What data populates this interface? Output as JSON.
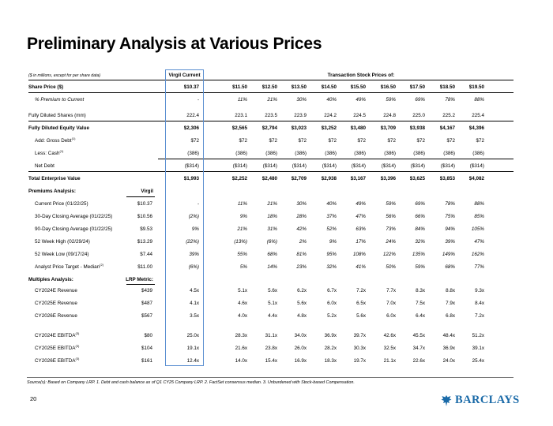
{
  "title": "Preliminary Analysis at Various Prices",
  "units_note": "($ in millions, except for per share data)",
  "header_virgil": "Virgil Current",
  "header_transaction": "Transaction Stock Prices of:",
  "top_rows": [
    {
      "label": "Share Price ($)",
      "style": "bold",
      "virgil": "$10.37",
      "values": [
        "$11.50",
        "$12.50",
        "$13.50",
        "$14.50",
        "$15.50",
        "$16.50",
        "$17.50",
        "$18.50",
        "$19.50"
      ]
    },
    {
      "label": "% Premium to Current",
      "style": "ital-sub",
      "virgil": "-",
      "values": [
        "11%",
        "21%",
        "30%",
        "40%",
        "49%",
        "59%",
        "69%",
        "78%",
        "88%"
      ]
    },
    {
      "label": "Fully Diluted Shares (mm)",
      "style": "",
      "virgil": "222.4",
      "values": [
        "223.1",
        "223.5",
        "223.9",
        "224.2",
        "224.5",
        "224.8",
        "225.0",
        "225.2",
        "225.4"
      ]
    },
    {
      "label": "Fully Diluted Equity Value",
      "style": "bold",
      "virgil": "$2,306",
      "values": [
        "$2,565",
        "$2,794",
        "$3,023",
        "$3,252",
        "$3,480",
        "$3,709",
        "$3,938",
        "$4,167",
        "$4,396"
      ]
    },
    {
      "label": "Add: Gross Debt",
      "sup": "(1)",
      "style": "sub",
      "virgil": "$72",
      "values": [
        "$72",
        "$72",
        "$72",
        "$72",
        "$72",
        "$72",
        "$72",
        "$72",
        "$72"
      ]
    },
    {
      "label": "Less: Cash",
      "sup": "(1)",
      "style": "sub",
      "virgil": "(386)",
      "values": [
        "(386)",
        "(386)",
        "(386)",
        "(386)",
        "(386)",
        "(386)",
        "(386)",
        "(386)",
        "(386)"
      ]
    },
    {
      "label": "Net Debt",
      "style": "sub",
      "virgil": "($314)",
      "values": [
        "($314)",
        "($314)",
        "($314)",
        "($314)",
        "($314)",
        "($314)",
        "($314)",
        "($314)",
        "($314)"
      ]
    },
    {
      "label": "Total Enterprise Value",
      "style": "bold",
      "virgil": "$1,993",
      "values": [
        "$2,252",
        "$2,480",
        "$2,709",
        "$2,938",
        "$3,167",
        "$3,396",
        "$3,625",
        "$3,853",
        "$4,082"
      ]
    }
  ],
  "premiums": {
    "heading": "Premiums Analysis:",
    "ref_header": "Virgil",
    "rows": [
      {
        "label": "Current Price (01/22/25)",
        "ref": "$10.37",
        "virgil": "-",
        "values": [
          "11%",
          "21%",
          "30%",
          "40%",
          "49%",
          "59%",
          "69%",
          "78%",
          "88%"
        ]
      },
      {
        "label": "30-Day Closing Average (01/22/25)",
        "ref": "$10.56",
        "virgil": "(2%)",
        "values": [
          "9%",
          "18%",
          "28%",
          "37%",
          "47%",
          "56%",
          "66%",
          "75%",
          "85%"
        ]
      },
      {
        "label": "90-Day Closing Average (01/22/25)",
        "ref": "$9.53",
        "virgil": "9%",
        "values": [
          "21%",
          "31%",
          "42%",
          "52%",
          "63%",
          "73%",
          "84%",
          "94%",
          "105%"
        ]
      },
      {
        "label": "52 Week High (02/29/24)",
        "ref": "$13.29",
        "virgil": "(22%)",
        "values": [
          "(13%)",
          "(6%)",
          "2%",
          "9%",
          "17%",
          "24%",
          "32%",
          "39%",
          "47%"
        ]
      },
      {
        "label": "52 Week Low (09/17/24)",
        "ref": "$7.44",
        "virgil": "39%",
        "values": [
          "55%",
          "68%",
          "81%",
          "95%",
          "108%",
          "122%",
          "135%",
          "149%",
          "162%"
        ]
      },
      {
        "label": "Analyst Price Target - Median",
        "sup": "(2)",
        "ref": "$11.00",
        "virgil": "(6%)",
        "values": [
          "5%",
          "14%",
          "23%",
          "32%",
          "41%",
          "50%",
          "59%",
          "68%",
          "77%"
        ]
      }
    ]
  },
  "multiples": {
    "heading": "Multiples Analysis:",
    "ref_header": "LRP Metric:",
    "rows": [
      {
        "label": "CY2024E Revenue",
        "ref": "$439",
        "virgil": "4.5x",
        "values": [
          "5.1x",
          "5.6x",
          "6.2x",
          "6.7x",
          "7.2x",
          "7.7x",
          "8.3x",
          "8.8x",
          "9.3x"
        ]
      },
      {
        "label": "CY2025E Revenue",
        "ref": "$487",
        "virgil": "4.1x",
        "values": [
          "4.6x",
          "5.1x",
          "5.6x",
          "6.0x",
          "6.5x",
          "7.0x",
          "7.5x",
          "7.9x",
          "8.4x"
        ]
      },
      {
        "label": "CY2026E Revenue",
        "ref": "$567",
        "virgil": "3.5x",
        "values": [
          "4.0x",
          "4.4x",
          "4.8x",
          "5.2x",
          "5.6x",
          "6.0x",
          "6.4x",
          "6.8x",
          "7.2x"
        ]
      },
      {
        "label": "CY2024E EBITDA",
        "sup": "(3)",
        "ref": "$80",
        "virgil": "25.0x",
        "values": [
          "28.3x",
          "31.1x",
          "34.0x",
          "36.9x",
          "39.7x",
          "42.6x",
          "45.5x",
          "48.4x",
          "51.2x"
        ]
      },
      {
        "label": "CY2025E EBITDA",
        "sup": "(3)",
        "ref": "$104",
        "virgil": "19.1x",
        "values": [
          "21.6x",
          "23.8x",
          "26.0x",
          "28.2x",
          "30.3x",
          "32.5x",
          "34.7x",
          "36.9x",
          "39.1x"
        ]
      },
      {
        "label": "CY2026E EBITDA",
        "sup": "(3)",
        "ref": "$161",
        "virgil": "12.4x",
        "values": [
          "14.0x",
          "15.4x",
          "16.9x",
          "18.3x",
          "19.7x",
          "21.1x",
          "22.6x",
          "24.0x",
          "25.4x"
        ]
      }
    ]
  },
  "footnote": "Source(s): Based on Company LRP. 1. Debt and cash balance as of Q1 CY25 Company LRP. 2. FactSet consensus median. 3. Unburdened with Stock-based Compensation.",
  "page_number": "20",
  "logo_text": "BARCLAYS",
  "logo_icon": "eagle-icon",
  "accent_color": "#5b8fd1",
  "brand_color": "#1a6aa8"
}
